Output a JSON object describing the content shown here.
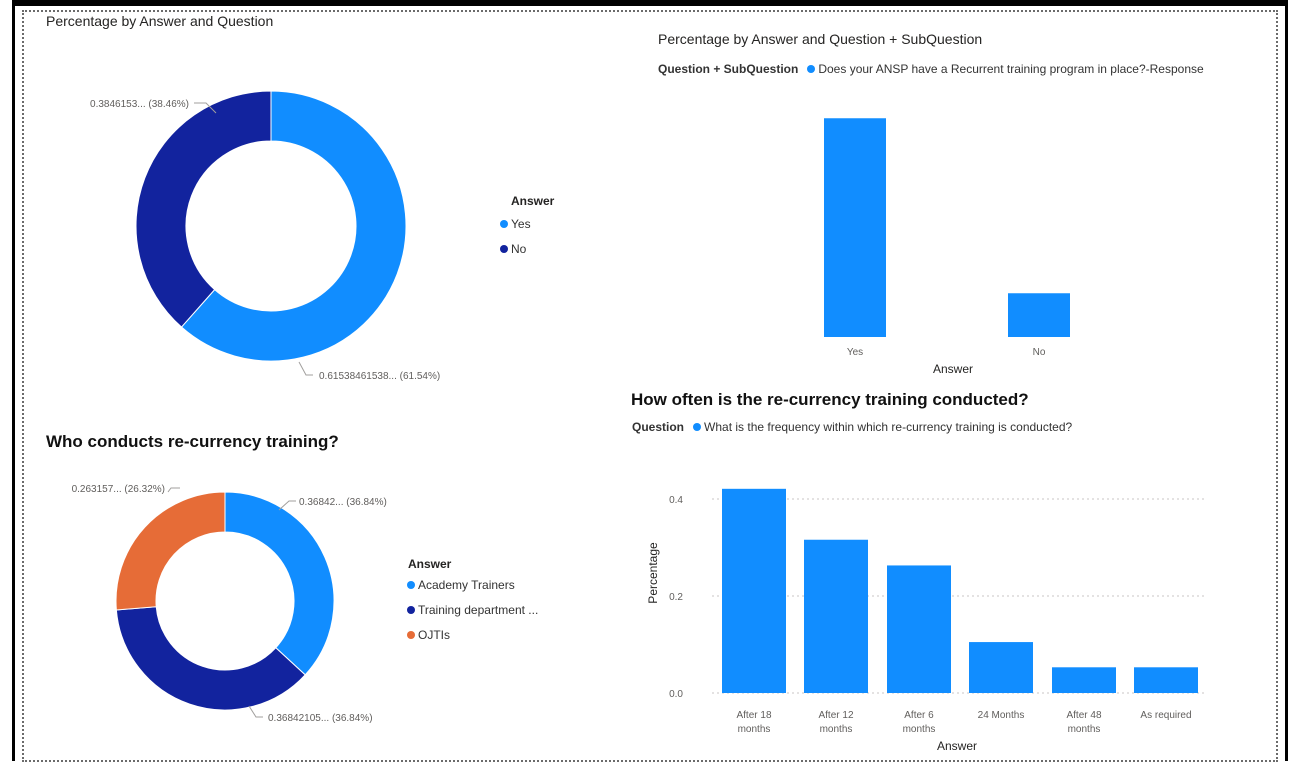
{
  "colors": {
    "blue": "#118dff",
    "navy": "#12239e",
    "orange": "#e66c37",
    "axis": "#605e5c",
    "grid": "#c8c6c4"
  },
  "charts": {
    "donut_top": {
      "title": "Percentage by Answer and Question",
      "legend_title": "Answer",
      "legend_items": [
        "Yes",
        "No"
      ],
      "label_no": "0.3846153... (38.46%)",
      "label_yes": "0.61538461538... (61.54%)"
    },
    "bar_top": {
      "title": "Percentage by Answer and Question + SubQuestion",
      "legend_label": "Question + SubQuestion",
      "legend_item": "Does your ANSP have a Recurrent training program in place?-Response",
      "xlabel": "Answer"
    },
    "donut_bottom": {
      "title": "Who conducts re-currency training?",
      "legend_title": "Answer",
      "legend_items": [
        "Academy Trainers",
        "Training department ...",
        "OJTIs"
      ],
      "label_academy": "0.36842... (36.84%)",
      "label_training": "0.36842105... (36.84%)",
      "label_ojti": "0.263157... (26.32%)"
    },
    "bar_bottom": {
      "title": "How often is the re-currency training conducted?",
      "legend_label": "Question",
      "legend_item": "What is the frequency within which re-currency training is conducted?",
      "xlabel": "Answer",
      "ylabel": "Percentage"
    }
  },
  "chart_data": [
    {
      "type": "pie",
      "title": "Percentage by Answer and Question",
      "donut": true,
      "categories": [
        "Yes",
        "No"
      ],
      "values": [
        0.6153846154,
        0.3846153846
      ],
      "colors": [
        "#118dff",
        "#12239e"
      ],
      "legend": "right"
    },
    {
      "type": "bar",
      "title": "Percentage by Answer and Question + SubQuestion",
      "categories": [
        "Yes",
        "No"
      ],
      "values": [
        0.875,
        0.175
      ],
      "ylim": [
        0,
        1
      ],
      "xlabel": "Answer",
      "ylabel": "",
      "series": [
        {
          "name": "Does your ANSP have a Recurrent training program in place?-Response",
          "values": [
            0.875,
            0.175
          ]
        }
      ],
      "grid": false,
      "legend": "top-left"
    },
    {
      "type": "pie",
      "title": "Who conducts re-currency training?",
      "donut": true,
      "categories": [
        "Academy Trainers",
        "Training department ...",
        "OJTIs"
      ],
      "values": [
        0.3684210526,
        0.3684210526,
        0.2631578947
      ],
      "colors": [
        "#118dff",
        "#12239e",
        "#e66c37"
      ],
      "legend": "right"
    },
    {
      "type": "bar",
      "title": "How often is the re-currency training conducted?",
      "categories": [
        "After 18 months",
        "After 12 months",
        "After 6 months",
        "24 Months",
        "After 48 months",
        "As required"
      ],
      "values": [
        0.421,
        0.316,
        0.263,
        0.105,
        0.053,
        0.053
      ],
      "ylim": [
        0,
        0.45
      ],
      "yticks": [
        0.0,
        0.2,
        0.4
      ],
      "ytick_labels": [
        "0.0",
        "0.2",
        "0.4"
      ],
      "xlabel": "Answer",
      "ylabel": "Percentage",
      "series": [
        {
          "name": "What is the frequency within which re-currency training is conducted?",
          "values": [
            0.421,
            0.316,
            0.263,
            0.105,
            0.053,
            0.053
          ]
        }
      ],
      "grid": true,
      "legend": "top-left"
    }
  ]
}
